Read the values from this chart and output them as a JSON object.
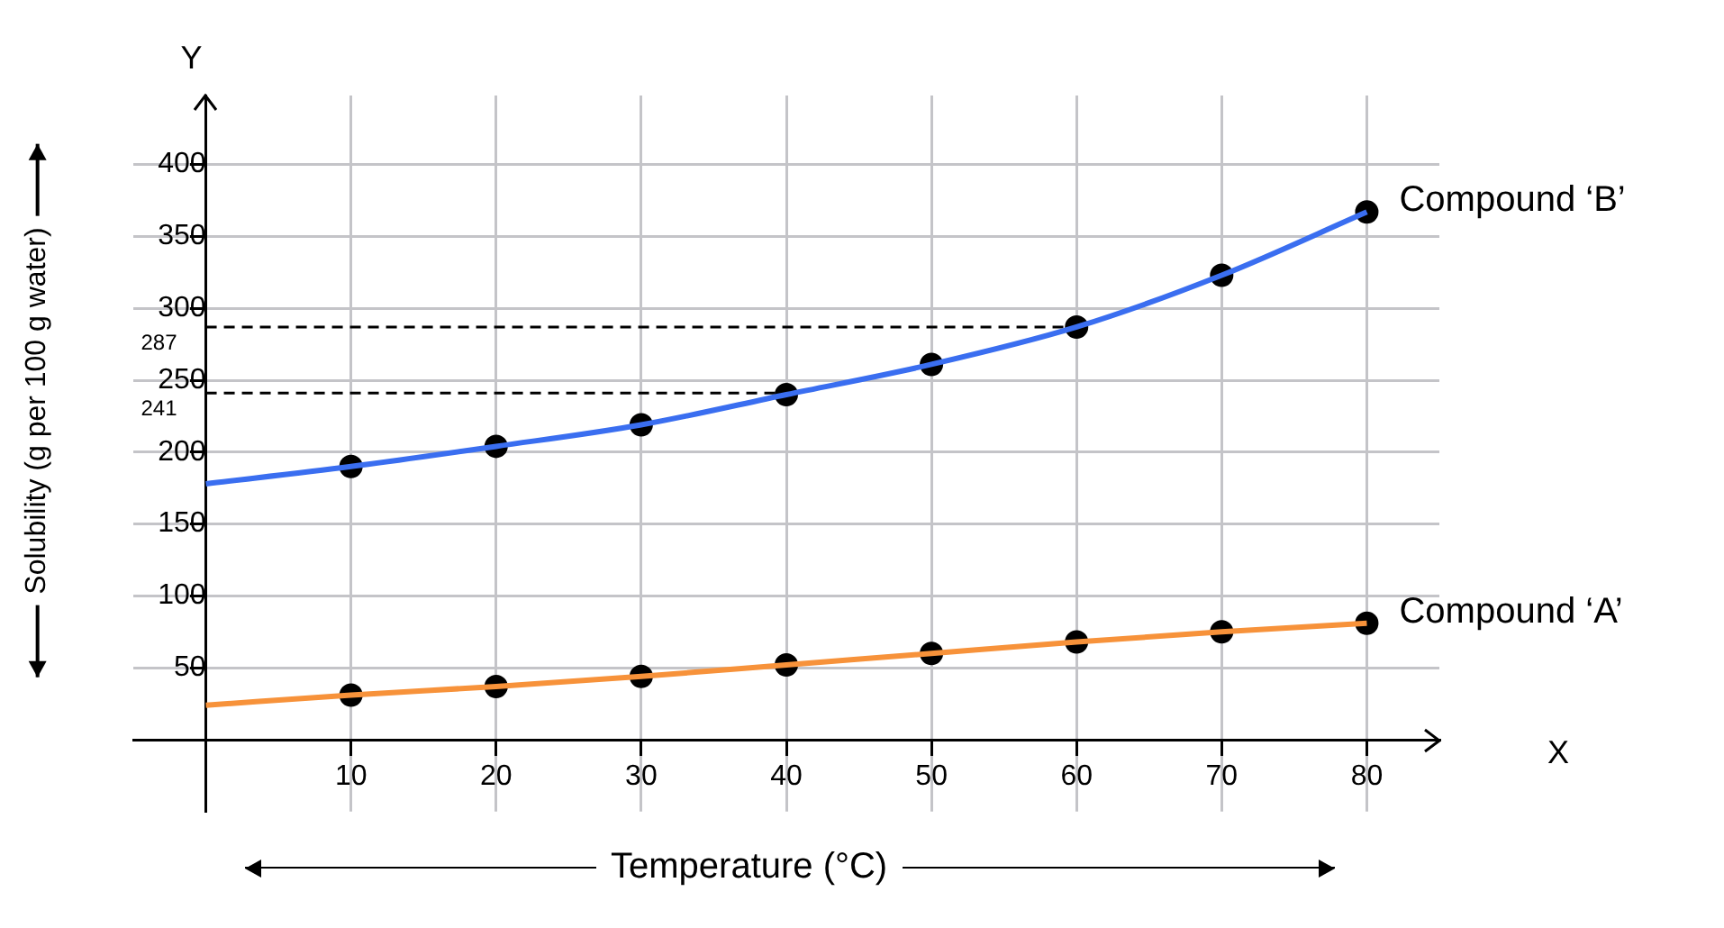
{
  "chart_data": {
    "type": "line",
    "xlabel": "Temperature (°C)",
    "ylabel": "Solubility (g per 100 g water)",
    "annotations": [
      "X",
      "Y"
    ],
    "series": [
      {
        "name": "Compound ‘B’",
        "type": "line",
        "color": "#3a6ef0",
        "marker": "none",
        "x": [
          0,
          10,
          20,
          30,
          40,
          50,
          60,
          70,
          80
        ],
        "values": [
          178,
          190,
          204,
          219,
          240,
          261,
          287,
          323,
          367
        ]
      },
      {
        "type": "scatter",
        "color": "#000000",
        "marker": "circle",
        "x": [
          10,
          20,
          30,
          40,
          50,
          60,
          70,
          80
        ],
        "values": [
          190,
          204,
          219,
          240,
          261,
          287,
          323,
          367
        ]
      },
      {
        "name": "Compound ‘A’",
        "type": "line",
        "color": "#f7923a",
        "marker": "none",
        "x": [
          0,
          10,
          20,
          30,
          40,
          50,
          60,
          70,
          80
        ],
        "values": [
          24,
          31,
          37,
          44,
          52,
          60,
          68,
          75,
          81
        ]
      },
      {
        "type": "scatter",
        "color": "#000000",
        "marker": "circle",
        "x": [
          10,
          20,
          30,
          40,
          50,
          60,
          70,
          80
        ],
        "values": [
          31,
          37,
          44,
          52,
          60,
          68,
          75,
          81
        ]
      }
    ],
    "ref_lines": [
      {
        "axis": "y",
        "value": 287,
        "label": "287",
        "color": "#000000",
        "line_style": "dashed"
      },
      {
        "axis": "y",
        "value": 241,
        "label": "241",
        "color": "#000000",
        "line_style": "dashed"
      }
    ],
    "xlim": [
      -5,
      85
    ],
    "xticks": [
      10,
      20,
      30,
      40,
      50,
      60,
      70,
      80
    ],
    "ylim": [
      -50,
      448
    ],
    "yticks": [
      50,
      100,
      150,
      200,
      250,
      300,
      350,
      400
    ],
    "grid": true,
    "legend": false
  }
}
